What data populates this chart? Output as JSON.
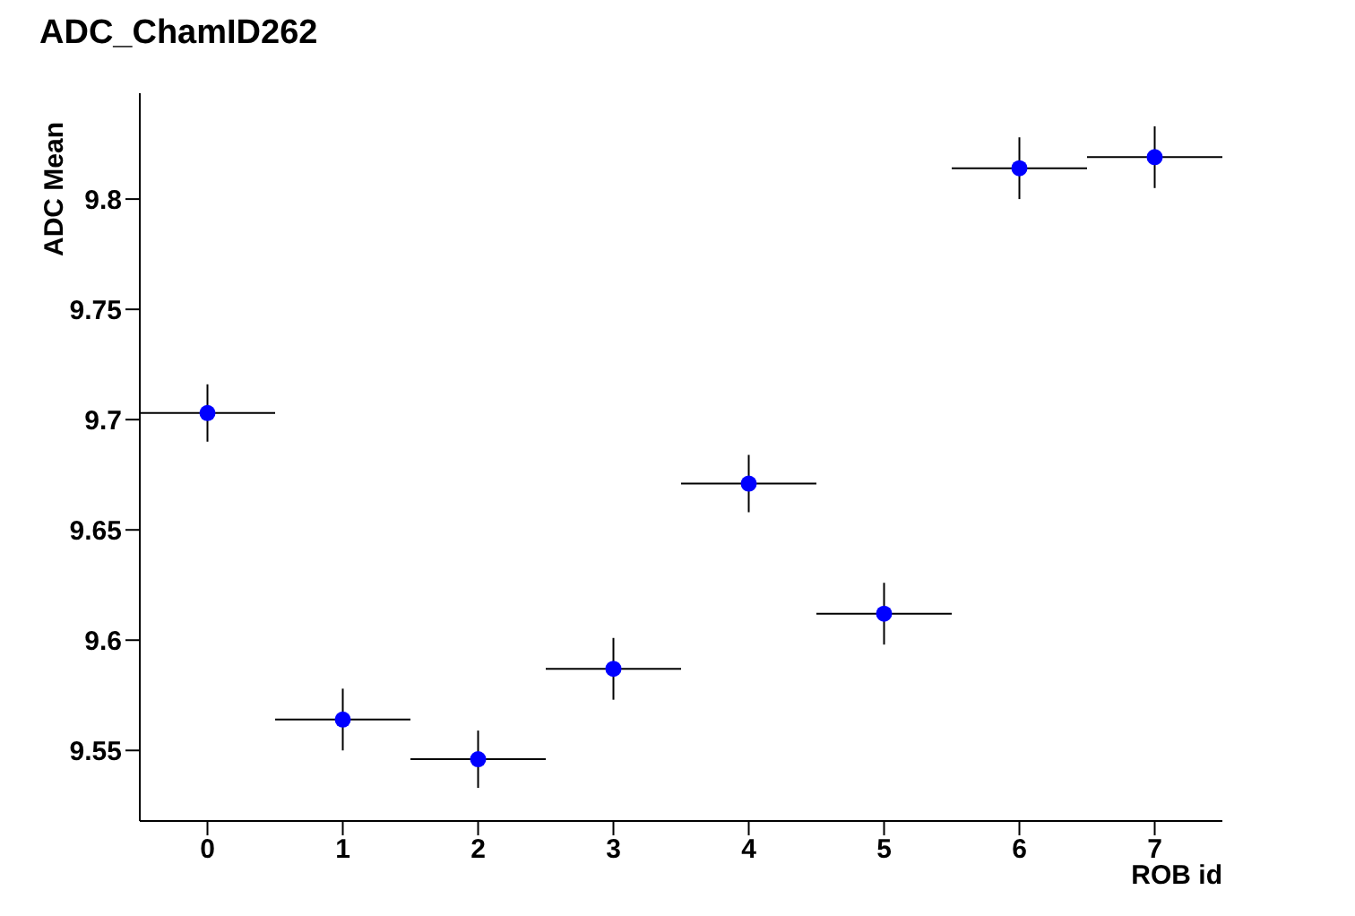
{
  "chart_data": {
    "type": "scatter",
    "title": "ADC_ChamID262",
    "xlabel": "ROB id",
    "ylabel": "ADC Mean",
    "x": [
      0,
      1,
      2,
      3,
      4,
      5,
      6,
      7
    ],
    "values": [
      9.703,
      9.564,
      9.546,
      9.587,
      9.671,
      9.612,
      9.814,
      9.819
    ],
    "errors": [
      0.013,
      0.014,
      0.013,
      0.014,
      0.013,
      0.014,
      0.014,
      0.014
    ],
    "xerrors": [
      0.5,
      0.5,
      0.5,
      0.5,
      0.5,
      0.5,
      0.5,
      0.5
    ],
    "color": "#0000ff",
    "marker": "circle",
    "xlim": [
      -0.5,
      7.5
    ],
    "xticks": [
      0,
      1,
      2,
      3,
      4,
      5,
      6,
      7
    ],
    "ylim": [
      9.518,
      9.848
    ],
    "yticks": [
      9.55,
      9.6,
      9.65,
      9.7,
      9.75,
      9.8
    ],
    "grid": false,
    "legend": false
  }
}
